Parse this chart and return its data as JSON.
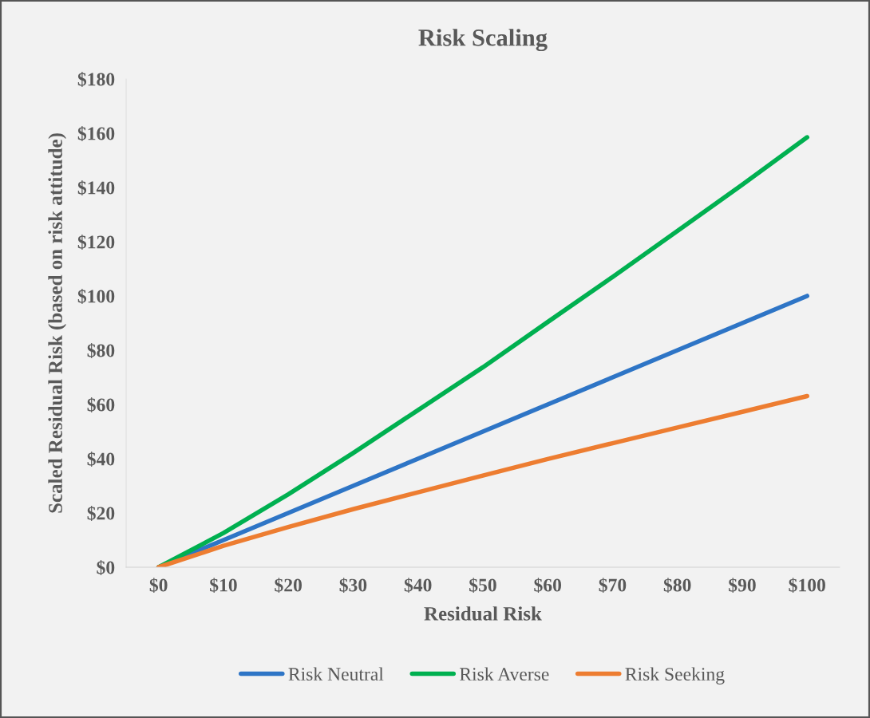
{
  "chart_data": {
    "type": "line",
    "title": "Risk Scaling",
    "xlabel": "Residual Risk",
    "ylabel": "Scaled Residual Risk (based on risk attitude)",
    "categories": [
      "$0",
      "$10",
      "$20",
      "$30",
      "$40",
      "$50",
      "$60",
      "$70",
      "$80",
      "$90",
      "$100"
    ],
    "series": [
      {
        "name": "Risk Neutral",
        "color": "#2e75c6",
        "values": [
          0,
          10,
          20,
          30,
          40,
          50,
          60,
          70,
          80,
          90,
          100
        ]
      },
      {
        "name": "Risk Averse",
        "color": "#00b050",
        "values": [
          0,
          12.6,
          26.9,
          42.1,
          57.9,
          73.7,
          90.4,
          107,
          124,
          141,
          158.5
        ]
      },
      {
        "name": "Risk Seeking",
        "color": "#ed7d31",
        "values": [
          0,
          7.9,
          14.8,
          21.4,
          27.6,
          33.8,
          39.9,
          45.7,
          51.5,
          57.3,
          63.1
        ]
      }
    ],
    "ylim": [
      0,
      180
    ],
    "yticks": [
      {
        "value": 0,
        "label": "$0"
      },
      {
        "value": 20,
        "label": "$20"
      },
      {
        "value": 40,
        "label": "$40"
      },
      {
        "value": 60,
        "label": "$60"
      },
      {
        "value": 80,
        "label": "$80"
      },
      {
        "value": 100,
        "label": "$100"
      },
      {
        "value": 120,
        "label": "$120"
      },
      {
        "value": 140,
        "label": "$140"
      },
      {
        "value": 160,
        "label": "$160"
      },
      {
        "value": 180,
        "label": "$180"
      }
    ],
    "grid": false,
    "legend": "bottom",
    "marker": "none",
    "line_style": "solid"
  }
}
